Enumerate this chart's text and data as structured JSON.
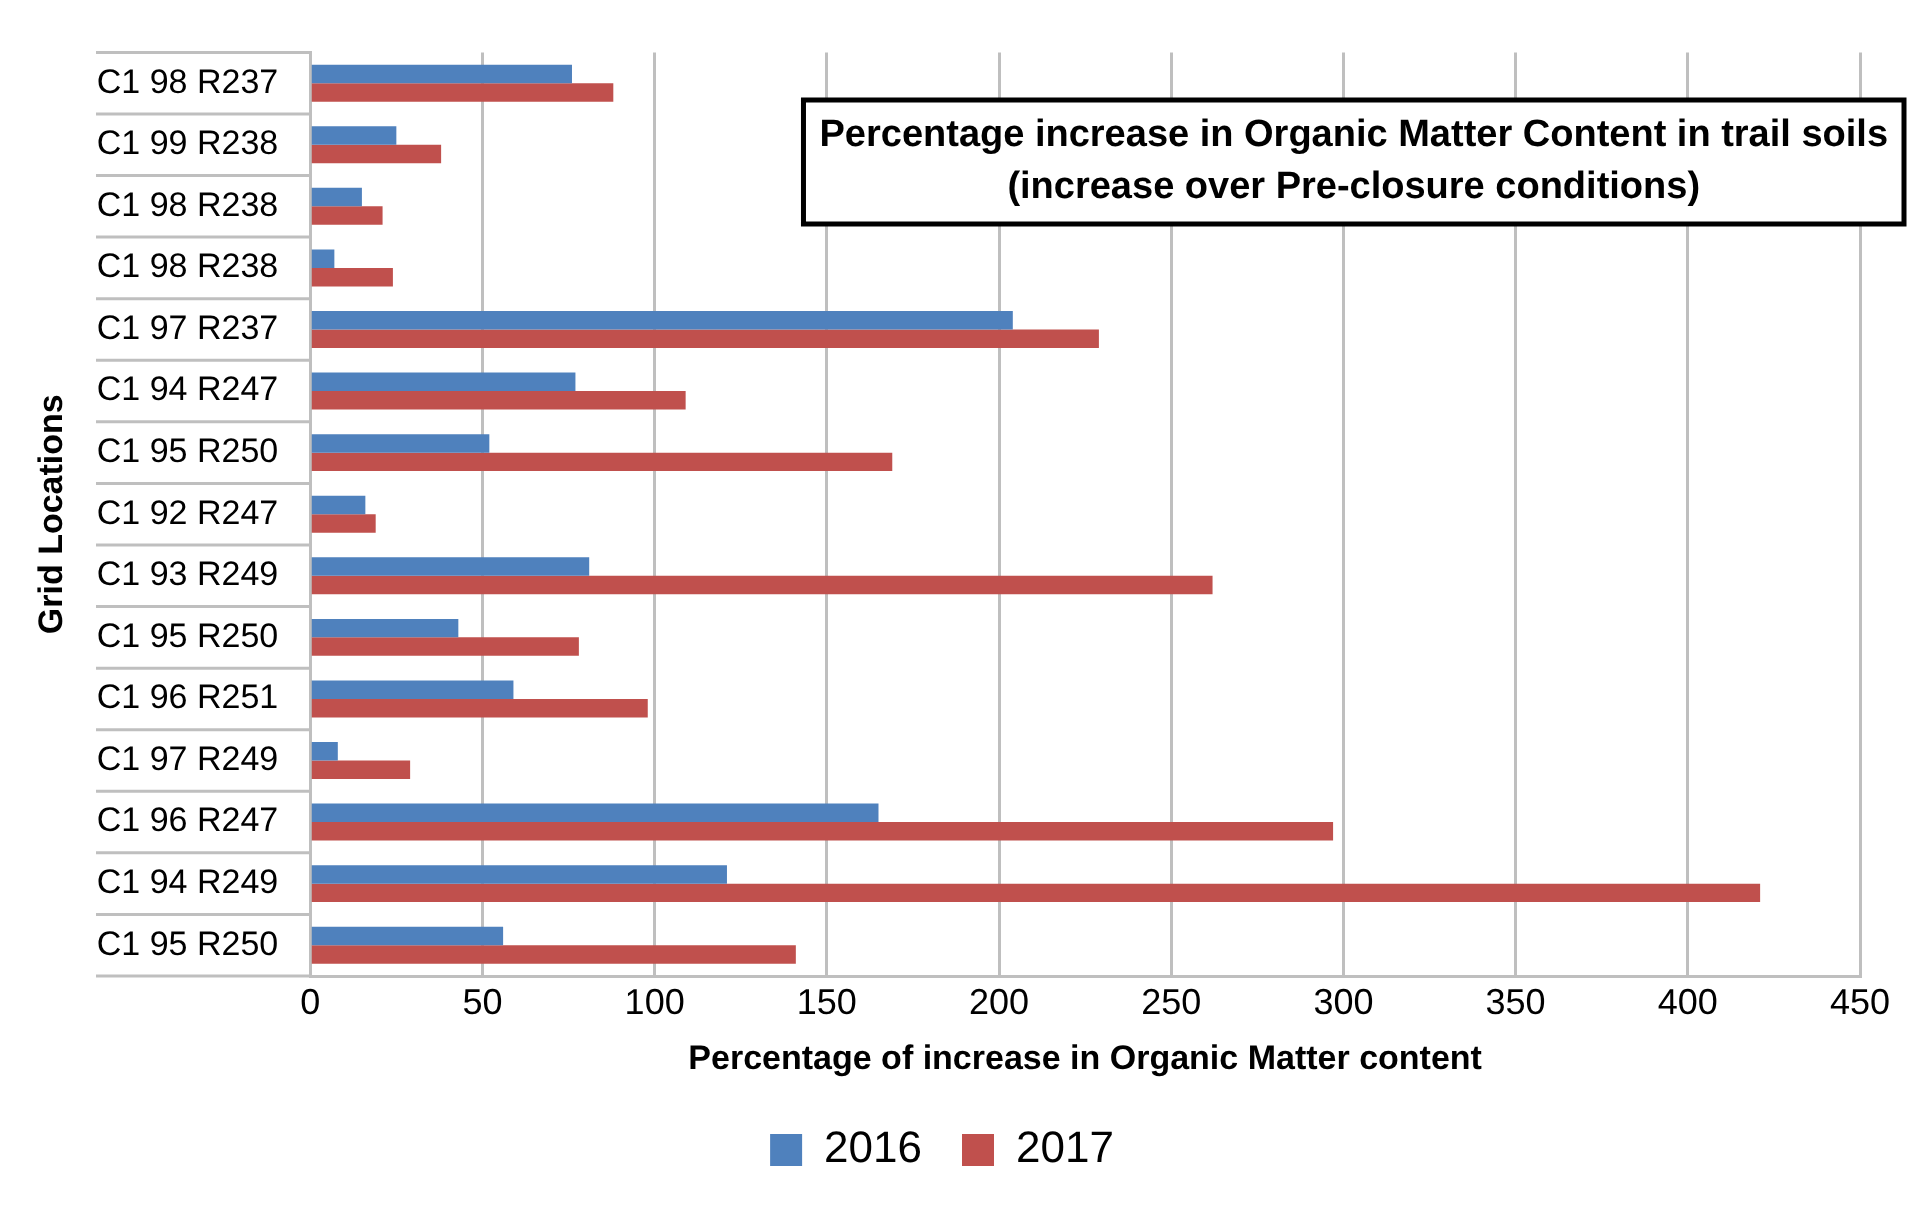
{
  "chart_data": {
    "type": "bar",
    "orientation": "horizontal",
    "title": "Percentage increase in Organic Matter Content in trail soils",
    "subtitle": "(increase over Pre-closure conditions)",
    "xlabel": "Percentage of increase in Organic Matter content",
    "ylabel": "Grid Locations",
    "categories": [
      "C1 98 R237",
      "C1 99 R238",
      "C1 98 R238",
      "C1 98 R238",
      "C1 97 R237",
      "C1 94 R247",
      "C1 95 R250",
      "C1 92 R247",
      "C1 93 R249",
      "C1 95 R250",
      "C1 96 R251",
      "C1 97 R249",
      "C1 96 R247",
      "C1 94 R249",
      "C1 95 R250"
    ],
    "series": [
      {
        "name": "2016",
        "color": "#4f81bd",
        "values": [
          76,
          25,
          15,
          7,
          204,
          77,
          52,
          16,
          81,
          43,
          59,
          8,
          165,
          121,
          56
        ]
      },
      {
        "name": "2017",
        "color": "#c0504d",
        "values": [
          88,
          38,
          21,
          24,
          229,
          109,
          169,
          19,
          262,
          78,
          98,
          29,
          297,
          421,
          141
        ]
      }
    ],
    "xlim": [
      0,
      450
    ],
    "xticks": [
      0,
      50,
      100,
      150,
      200,
      250,
      300,
      350,
      400,
      450
    ],
    "grid": "x",
    "legend": "bottom"
  }
}
